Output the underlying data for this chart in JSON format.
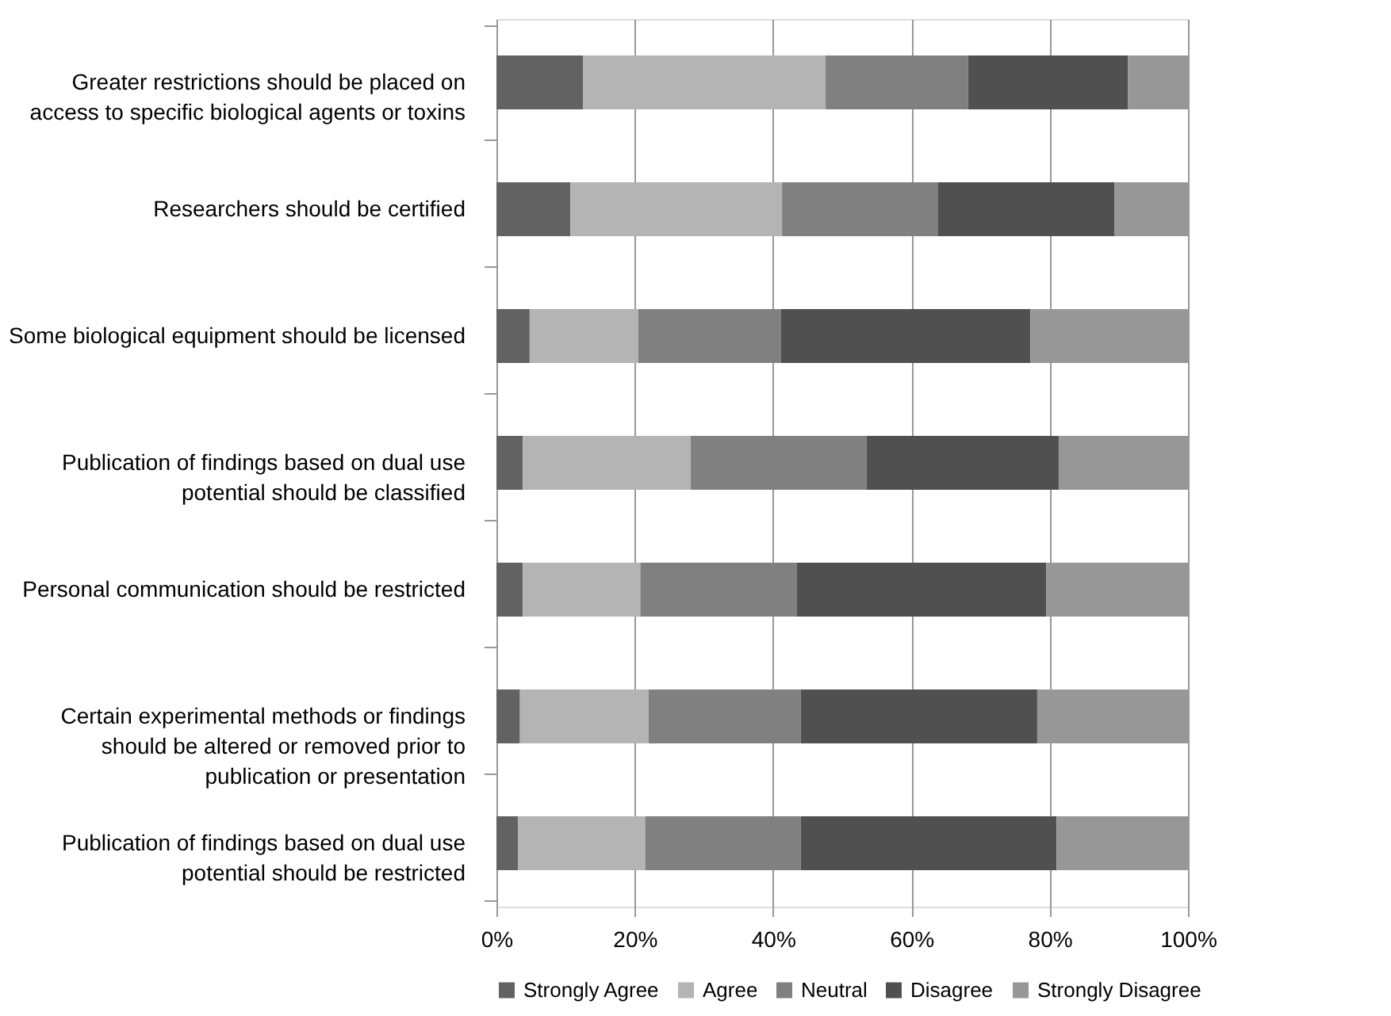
{
  "chart_data": {
    "type": "bar",
    "orientation": "horizontal",
    "stacked": true,
    "categories": [
      "Greater restrictions should be placed on access to specific biological agents or toxins",
      "Researchers should be certified",
      "Some biological equipment should be licensed",
      "Publication of findings based on dual use potential should be classified",
      "Personal communication should be restricted",
      "Certain experimental methods or findings should be altered or removed prior to publication or presentation",
      "Publication of findings based on dual use potential should be restricted"
    ],
    "series": [
      {
        "name": "Strongly Agree",
        "color": "#626262",
        "values": [
          12.5,
          10.7,
          4.8,
          3.8,
          3.8,
          3.4,
          3.1
        ]
      },
      {
        "name": "Agree",
        "color": "#b4b4b4",
        "values": [
          35.1,
          30.6,
          15.7,
          24.3,
          17.0,
          18.6,
          18.4
        ]
      },
      {
        "name": "Neutral",
        "color": "#7f807f",
        "values": [
          20.6,
          22.5,
          20.6,
          25.4,
          22.6,
          22.0,
          22.5
        ]
      },
      {
        "name": "Disagree",
        "color": "#505050",
        "values": [
          23.1,
          25.6,
          36.1,
          27.8,
          36.1,
          34.2,
          37.0
        ]
      },
      {
        "name": "Strongly Disagree",
        "color": "#979797",
        "values": [
          8.7,
          10.6,
          22.8,
          18.7,
          20.5,
          21.8,
          19.0
        ]
      }
    ],
    "xlim": [
      0,
      100
    ],
    "xticks": [
      {
        "value": 0,
        "label": "0%"
      },
      {
        "value": 20,
        "label": "20%"
      },
      {
        "value": 40,
        "label": "40%"
      },
      {
        "value": 60,
        "label": "60%"
      },
      {
        "value": 80,
        "label": "80%"
      },
      {
        "value": 100,
        "label": "100%"
      }
    ],
    "grid": "x",
    "legend": "bottom"
  }
}
